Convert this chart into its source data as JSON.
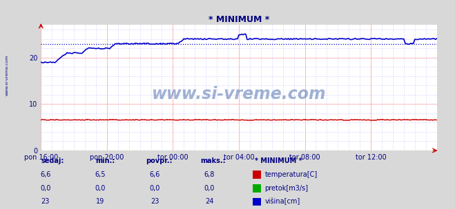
{
  "title": "* MINIMUM *",
  "title_color": "#000080",
  "bg_color": "#d8d8d8",
  "plot_bg_color": "#ffffff",
  "xlim": [
    0,
    288
  ],
  "ylim": [
    0,
    27
  ],
  "yticks": [
    0,
    10,
    20
  ],
  "xtick_labels": [
    "pon 16:00",
    "pon 20:00",
    "tor 00:00",
    "tor 04:00",
    "tor 08:00",
    "tor 12:00"
  ],
  "xtick_positions": [
    0,
    48,
    96,
    144,
    192,
    240
  ],
  "temp_color": "#cc0000",
  "flow_color": "#00aa00",
  "height_color": "#0000cc",
  "temp_avg": 6.6,
  "flow_avg": 0.0,
  "height_avg": 23,
  "temp_min": 6.5,
  "flow_min": 0.0,
  "height_min": 19,
  "temp_maks": 6.8,
  "flow_maks": 0.0,
  "height_maks": 24,
  "temp_sedaj": 6.6,
  "flow_sedaj": 0.0,
  "height_sedaj": 23,
  "watermark": "www.si-vreme.com",
  "left_label": "www.si-vreme.com"
}
